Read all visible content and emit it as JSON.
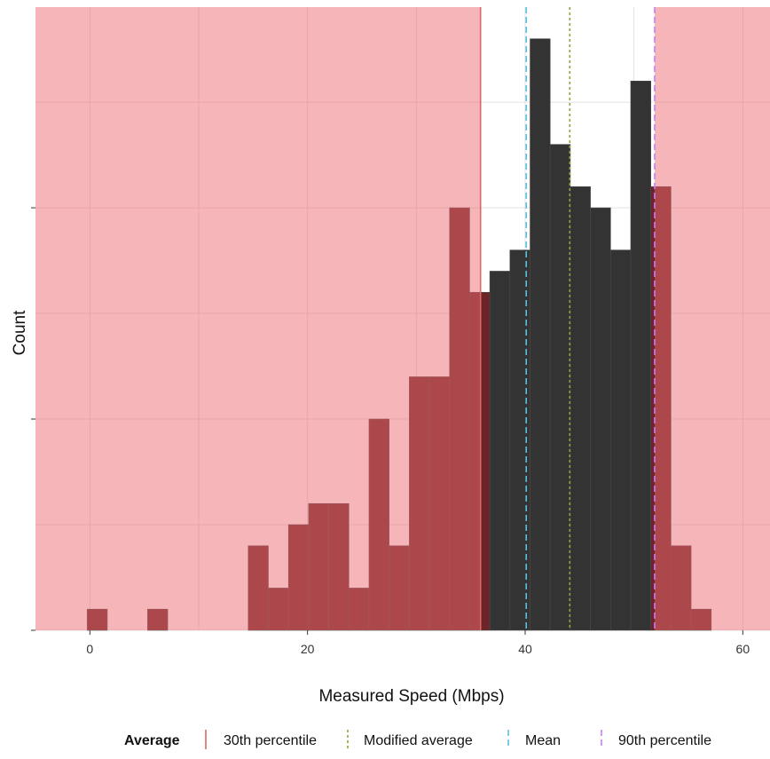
{
  "chart_data": {
    "type": "bar",
    "subtype": "histogram",
    "title": "",
    "xlabel": "Measured Speed (Mbps)",
    "ylabel": "Count",
    "xlim": [
      -5,
      62.5
    ],
    "ylim": [
      0,
      29.5
    ],
    "x_ticks": [
      0,
      20,
      40,
      60
    ],
    "x_tick_labels": [
      "0",
      "20",
      "40",
      "60"
    ],
    "y_ticks": [
      0,
      10,
      20
    ],
    "y_tick_labels": [
      "",
      "",
      ""
    ],
    "grid": true,
    "bin_width": 1.85,
    "bin_start": -0.25,
    "counts": [
      1,
      0,
      0,
      1,
      0,
      0,
      0,
      0,
      4,
      2,
      5,
      6,
      6,
      2,
      10,
      4,
      12,
      12,
      20,
      16,
      17,
      18,
      28,
      23,
      21,
      20,
      18,
      26,
      21,
      4,
      1
    ],
    "bins_with_values": [
      {
        "x": 0.7,
        "count": 1
      },
      {
        "x": 6.2,
        "count": 1
      },
      {
        "x": 15.5,
        "count": 4
      },
      {
        "x": 17.3,
        "count": 2
      },
      {
        "x": 19.2,
        "count": 5
      },
      {
        "x": 21.0,
        "count": 6
      },
      {
        "x": 22.9,
        "count": 6
      },
      {
        "x": 24.7,
        "count": 2
      },
      {
        "x": 26.6,
        "count": 10
      },
      {
        "x": 28.4,
        "count": 4
      },
      {
        "x": 30.3,
        "count": 12
      },
      {
        "x": 32.1,
        "count": 12
      },
      {
        "x": 34.0,
        "count": 20
      },
      {
        "x": 35.8,
        "count": 16
      },
      {
        "x": 37.7,
        "count": 17
      },
      {
        "x": 39.5,
        "count": 18
      },
      {
        "x": 41.4,
        "count": 28
      },
      {
        "x": 43.2,
        "count": 23
      },
      {
        "x": 45.1,
        "count": 21
      },
      {
        "x": 46.9,
        "count": 20
      },
      {
        "x": 48.8,
        "count": 18
      },
      {
        "x": 50.6,
        "count": 26
      },
      {
        "x": 52.5,
        "count": 21
      },
      {
        "x": 54.3,
        "count": 4
      },
      {
        "x": 56.2,
        "count": 1
      }
    ],
    "excluded_ranges": [
      [
        -5,
        35.9
      ],
      [
        51.9,
        62.5
      ]
    ],
    "reference_lines": [
      {
        "name": "30th percentile",
        "value": 35.9,
        "color": "#e06666",
        "dash": "solid"
      },
      {
        "name": "Modified average",
        "value": 44.1,
        "color": "#9aa03a",
        "dash": "dotted"
      },
      {
        "name": "Mean",
        "value": 40.1,
        "color": "#5bc0de",
        "dash": "dashed"
      },
      {
        "name": "90th percentile",
        "value": 51.9,
        "color": "#c77dff",
        "dash": "dashed"
      }
    ],
    "colors": {
      "excluded_fill": "#f4b0b2",
      "included_bar": "#333333",
      "excluded_bar": "#6b2427",
      "grid": "#e2e2e2"
    },
    "legend": {
      "title": "Average",
      "position": "bottom",
      "items": [
        "30th percentile",
        "Modified average",
        "Mean",
        "90th percentile"
      ]
    }
  }
}
